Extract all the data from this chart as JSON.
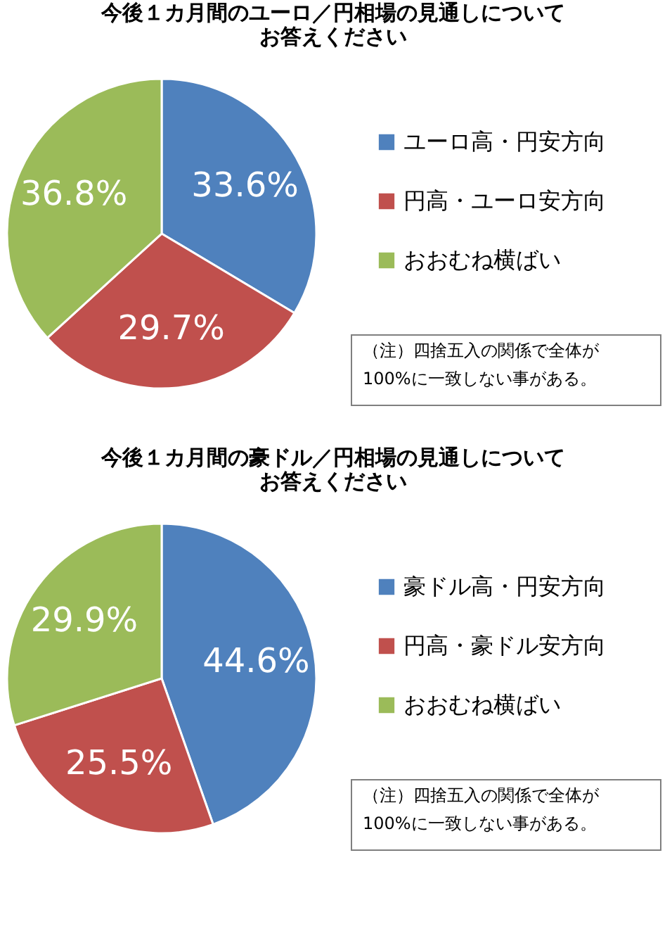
{
  "chart_data": [
    {
      "type": "pie",
      "title": "今後１カ月間のユーロ／円相場の見通しについてお答えください",
      "categories": [
        "ユーロ高・円安方向",
        "円高・ユーロ安方向",
        "おおむね横ばい"
      ],
      "values": [
        33.6,
        29.7,
        36.8
      ],
      "colors": [
        "#4f81bd",
        "#c0504d",
        "#9bbb59"
      ],
      "value_labels": [
        "33.6%",
        "29.7%",
        "36.8%"
      ],
      "legend": "right",
      "annotations": [
        "（注）四捨五入の関係で全体が\n100%に一致しない事がある。"
      ]
    },
    {
      "type": "pie",
      "title": "今後１カ月間の豪ドル／円相場の見通しについてお答えください",
      "categories": [
        "豪ドル高・円安方向",
        "円高・豪ドル安方向",
        "おおむね横ばい"
      ],
      "values": [
        44.6,
        25.5,
        29.9
      ],
      "colors": [
        "#4f81bd",
        "#c0504d",
        "#9bbb59"
      ],
      "value_labels": [
        "44.6%",
        "25.5%",
        "29.9%"
      ],
      "legend": "right",
      "annotations": [
        "（注）四捨五入の関係で全体が\n100%に一致しない事がある。"
      ]
    }
  ]
}
